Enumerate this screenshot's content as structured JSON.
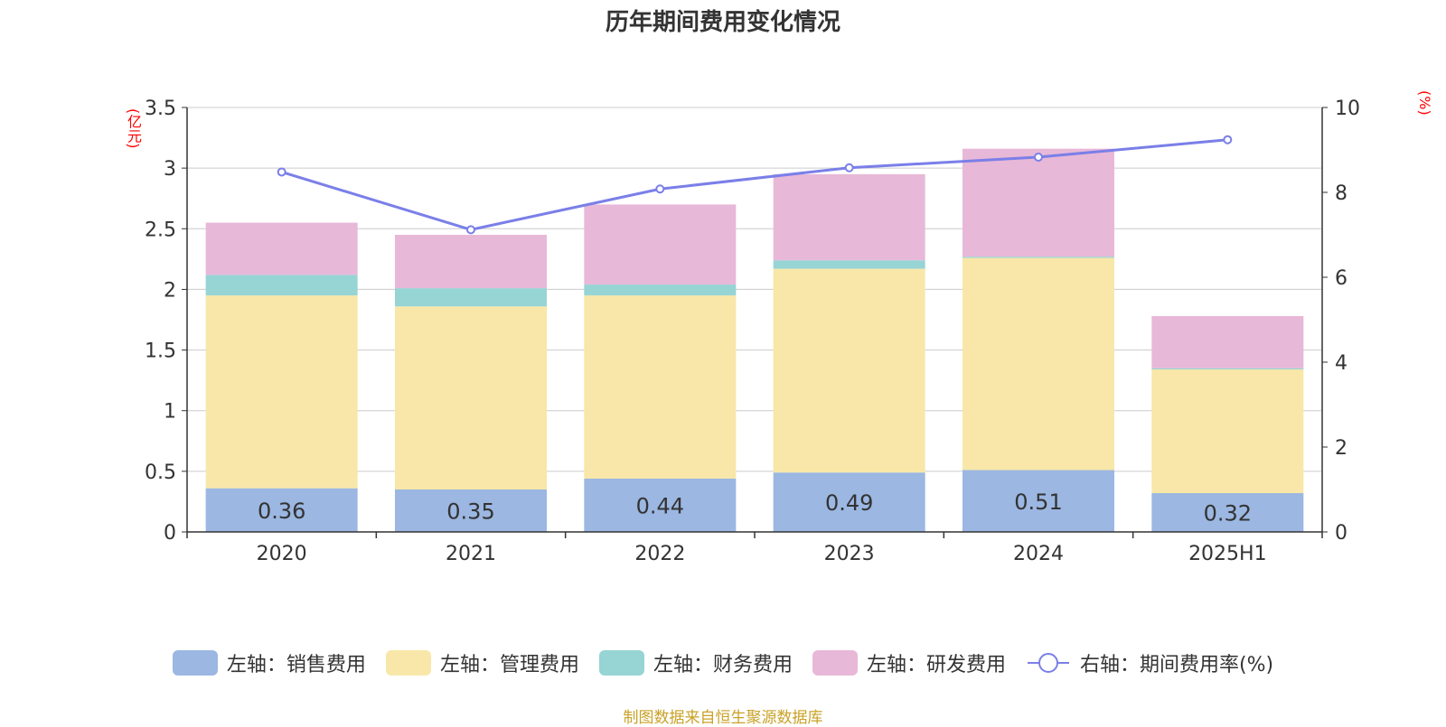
{
  "chart_data": {
    "type": "bar",
    "title": "历年期间费用变化情况",
    "categories": [
      "2020",
      "2021",
      "2022",
      "2023",
      "2024",
      "2025H1"
    ],
    "left_axis": {
      "unit": "(亿元)",
      "min": 0,
      "max": 3.5,
      "ticks": [
        "0",
        "0.5",
        "1",
        "1.5",
        "2",
        "2.5",
        "3",
        "3.5"
      ]
    },
    "right_axis": {
      "unit": "(%)",
      "min": 0,
      "max": 10,
      "ticks": [
        "0",
        "2",
        "4",
        "6",
        "8",
        "10"
      ]
    },
    "grid": true,
    "legend_position": "bottom",
    "series": [
      {
        "name": "左轴：销售费用",
        "type": "bar",
        "color": "#9bb7e2",
        "values": [
          0.36,
          0.35,
          0.44,
          0.49,
          0.51,
          0.32
        ],
        "data_labels": [
          "0.36",
          "0.35",
          "0.44",
          "0.49",
          "0.51",
          "0.32"
        ]
      },
      {
        "name": "左轴：管理费用",
        "type": "bar",
        "color": "#f8e7a8",
        "values": [
          1.59,
          1.51,
          1.51,
          1.68,
          1.75,
          1.02
        ]
      },
      {
        "name": "左轴：财务费用",
        "type": "bar",
        "color": "#97d4d4",
        "values": [
          0.17,
          0.15,
          0.09,
          0.07,
          0.01,
          0.01
        ]
      },
      {
        "name": "左轴：研发费用",
        "type": "bar",
        "color": "#e8b8d8",
        "values": [
          0.43,
          0.44,
          0.66,
          0.71,
          0.89,
          0.43
        ]
      },
      {
        "name": "右轴：期间费用率(%)",
        "type": "line",
        "color": "#7a7fe8",
        "values": [
          8.48,
          7.12,
          8.08,
          8.58,
          8.83,
          9.24
        ]
      }
    ]
  },
  "source_note": "制图数据来自恒生聚源数据库"
}
